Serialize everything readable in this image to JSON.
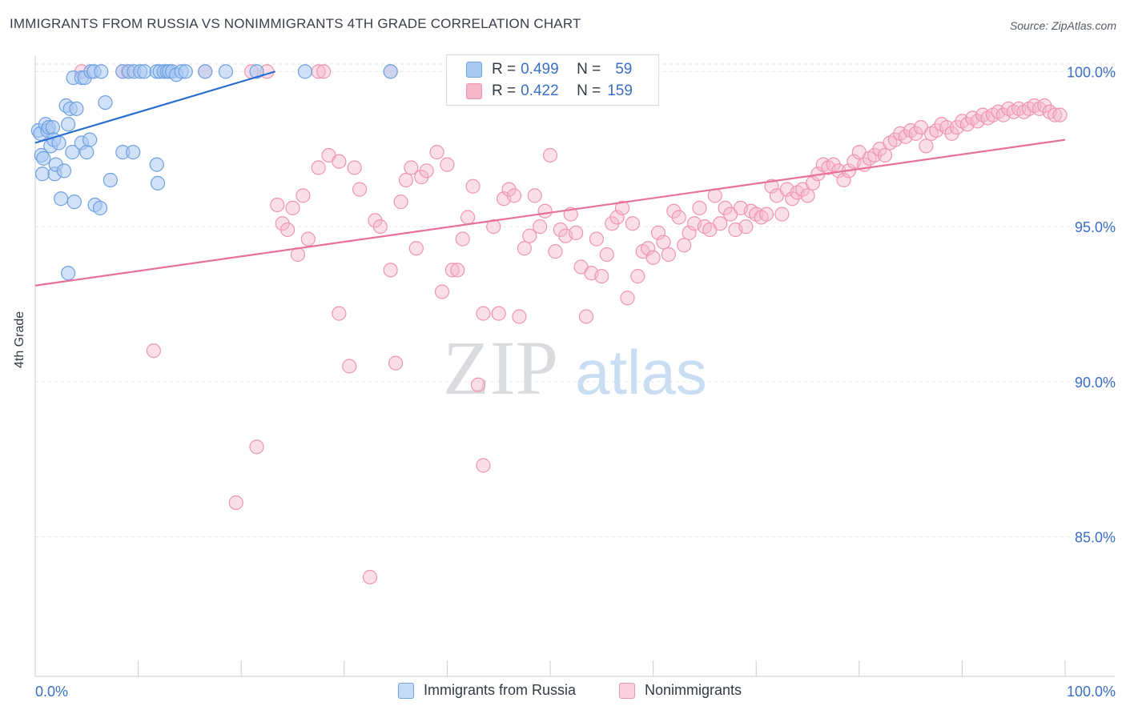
{
  "header": {
    "title": "IMMIGRANTS FROM RUSSIA VS NONIMMIGRANTS 4TH GRADE CORRELATION CHART",
    "source": "Source: ZipAtlas.com"
  },
  "watermark": {
    "zip": "ZIP",
    "atlas": "atlas"
  },
  "legend_top": {
    "rows": [
      {
        "r_label": "R =",
        "r_value": "0.499",
        "n_label": "N =",
        "n_value": "59"
      },
      {
        "r_label": "R =",
        "r_value": "0.422",
        "n_label": "N =",
        "n_value": "159"
      }
    ]
  },
  "colors": {
    "blue_fill": "#a9c8f2",
    "blue_stroke": "#6ea0e0",
    "blue_line": "#2a6dd1",
    "pink_fill": "#f5b8cb",
    "pink_stroke": "#ee94b0",
    "pink_line": "#e8719b",
    "axis_tick_color": "#3a6fc4",
    "grid": "#e3e6ea"
  },
  "chart_data": {
    "type": "scatter",
    "title": "IMMIGRANTS FROM RUSSIA VS NONIMMIGRANTS 4TH GRADE CORRELATION CHART",
    "xlabel": "",
    "ylabel": "4th Grade",
    "xlim": [
      0,
      100
    ],
    "ylim": [
      80.5,
      100.5
    ],
    "x_tick_labels": [
      "0.0%",
      "100.0%"
    ],
    "y_ticks": [
      85,
      90,
      95,
      100
    ],
    "y_tick_labels": [
      "85.0%",
      "90.0%",
      "95.0%",
      "100.0%"
    ],
    "grid": true,
    "legend_position": "bottom",
    "series": [
      {
        "name": "Immigrants from Russia",
        "r": 0.499,
        "n": 59,
        "trend": [
          [
            0,
            97.7
          ],
          [
            23.3,
            100.0
          ]
        ],
        "points": [
          [
            0.3,
            98.1
          ],
          [
            0.5,
            98.0
          ],
          [
            0.6,
            97.3
          ],
          [
            0.8,
            97.2
          ],
          [
            0.7,
            96.7
          ],
          [
            1.0,
            98.3
          ],
          [
            1.2,
            98.1
          ],
          [
            1.3,
            98.2
          ],
          [
            1.5,
            97.6
          ],
          [
            1.7,
            98.2
          ],
          [
            1.8,
            97.8
          ],
          [
            1.9,
            96.7
          ],
          [
            2.0,
            97.0
          ],
          [
            2.3,
            97.7
          ],
          [
            2.5,
            95.9
          ],
          [
            2.8,
            96.8
          ],
          [
            3.0,
            98.9
          ],
          [
            3.2,
            98.3
          ],
          [
            3.4,
            98.8
          ],
          [
            3.6,
            97.4
          ],
          [
            3.8,
            95.8
          ],
          [
            4.0,
            98.8
          ],
          [
            4.5,
            97.7
          ],
          [
            5.0,
            97.4
          ],
          [
            5.3,
            97.8
          ],
          [
            5.8,
            95.7
          ],
          [
            6.3,
            95.6
          ],
          [
            6.8,
            99.0
          ],
          [
            7.3,
            96.5
          ],
          [
            8.5,
            97.4
          ],
          [
            9.5,
            97.4
          ],
          [
            11.8,
            97.0
          ],
          [
            11.9,
            96.4
          ],
          [
            3.2,
            93.5
          ],
          [
            3.7,
            99.8
          ],
          [
            4.5,
            99.8
          ],
          [
            4.8,
            99.8
          ],
          [
            5.4,
            100.0
          ],
          [
            5.7,
            100.0
          ],
          [
            6.4,
            100.0
          ],
          [
            8.5,
            100.0
          ],
          [
            9.1,
            100.0
          ],
          [
            9.6,
            100.0
          ],
          [
            10.2,
            100.0
          ],
          [
            10.6,
            100.0
          ],
          [
            11.8,
            100.0
          ],
          [
            12.1,
            100.0
          ],
          [
            12.5,
            100.0
          ],
          [
            12.8,
            100.0
          ],
          [
            13.0,
            100.0
          ],
          [
            13.3,
            100.0
          ],
          [
            13.7,
            99.9
          ],
          [
            14.2,
            100.0
          ],
          [
            14.6,
            100.0
          ],
          [
            16.5,
            100.0
          ],
          [
            18.5,
            100.0
          ],
          [
            21.5,
            100.0
          ],
          [
            26.2,
            100.0
          ],
          [
            34.5,
            100.0
          ]
        ]
      },
      {
        "name": "Nonimmigrants",
        "r": 0.422,
        "n": 159,
        "trend": [
          [
            0,
            93.1
          ],
          [
            100,
            97.8
          ]
        ],
        "points": [
          [
            4.5,
            100.0
          ],
          [
            8.5,
            100.0
          ],
          [
            9.0,
            100.0
          ],
          [
            16.5,
            100.0
          ],
          [
            21.0,
            100.0
          ],
          [
            22.5,
            100.0
          ],
          [
            27.5,
            100.0
          ],
          [
            28.0,
            100.0
          ],
          [
            34.5,
            100.0
          ],
          [
            11.5,
            91.0
          ],
          [
            19.5,
            86.1
          ],
          [
            21.5,
            87.9
          ],
          [
            29.5,
            92.2
          ],
          [
            30.5,
            90.5
          ],
          [
            32.5,
            83.7
          ],
          [
            35.0,
            90.6
          ],
          [
            43.0,
            89.9
          ],
          [
            43.5,
            87.3
          ],
          [
            23.5,
            95.7
          ],
          [
            24.0,
            95.1
          ],
          [
            24.5,
            94.9
          ],
          [
            25.0,
            95.6
          ],
          [
            25.5,
            94.1
          ],
          [
            26.0,
            96.0
          ],
          [
            26.5,
            94.6
          ],
          [
            27.5,
            96.9
          ],
          [
            28.5,
            97.3
          ],
          [
            29.5,
            97.1
          ],
          [
            31.0,
            96.9
          ],
          [
            31.5,
            96.2
          ],
          [
            33.0,
            95.2
          ],
          [
            33.5,
            95.0
          ],
          [
            34.5,
            93.6
          ],
          [
            35.5,
            95.8
          ],
          [
            36.0,
            96.5
          ],
          [
            36.5,
            96.9
          ],
          [
            37.0,
            94.3
          ],
          [
            37.5,
            96.6
          ],
          [
            38.0,
            96.8
          ],
          [
            39.0,
            97.4
          ],
          [
            39.5,
            92.9
          ],
          [
            40.0,
            97.0
          ],
          [
            40.5,
            93.6
          ],
          [
            41.0,
            93.6
          ],
          [
            41.5,
            94.6
          ],
          [
            42.0,
            95.3
          ],
          [
            42.5,
            96.3
          ],
          [
            43.5,
            92.2
          ],
          [
            44.5,
            95.0
          ],
          [
            45.0,
            92.2
          ],
          [
            45.5,
            95.9
          ],
          [
            46.0,
            96.2
          ],
          [
            46.5,
            96.0
          ],
          [
            47.0,
            92.1
          ],
          [
            47.5,
            94.3
          ],
          [
            48.0,
            94.7
          ],
          [
            48.5,
            96.0
          ],
          [
            49.0,
            95.0
          ],
          [
            49.5,
            95.5
          ],
          [
            50.0,
            97.3
          ],
          [
            50.5,
            94.2
          ],
          [
            51.0,
            94.9
          ],
          [
            51.5,
            94.7
          ],
          [
            52.0,
            95.4
          ],
          [
            52.5,
            94.8
          ],
          [
            53.0,
            93.7
          ],
          [
            53.5,
            92.1
          ],
          [
            54.0,
            93.5
          ],
          [
            54.5,
            94.6
          ],
          [
            55.0,
            93.4
          ],
          [
            55.5,
            94.1
          ],
          [
            56.0,
            95.1
          ],
          [
            56.5,
            95.3
          ],
          [
            57.0,
            95.6
          ],
          [
            57.5,
            92.7
          ],
          [
            58.0,
            95.1
          ],
          [
            58.5,
            93.4
          ],
          [
            59.0,
            94.2
          ],
          [
            59.5,
            94.3
          ],
          [
            60.0,
            94.0
          ],
          [
            60.5,
            94.8
          ],
          [
            61.0,
            94.5
          ],
          [
            61.5,
            94.1
          ],
          [
            62.0,
            95.5
          ],
          [
            62.5,
            95.3
          ],
          [
            63.0,
            94.4
          ],
          [
            63.5,
            94.8
          ],
          [
            64.0,
            95.1
          ],
          [
            64.5,
            95.6
          ],
          [
            65.0,
            95.0
          ],
          [
            65.5,
            94.9
          ],
          [
            66.0,
            96.0
          ],
          [
            66.5,
            95.1
          ],
          [
            67.0,
            95.6
          ],
          [
            67.5,
            95.4
          ],
          [
            68.0,
            94.9
          ],
          [
            68.5,
            95.6
          ],
          [
            69.0,
            95.0
          ],
          [
            69.5,
            95.5
          ],
          [
            70.0,
            95.4
          ],
          [
            70.5,
            95.3
          ],
          [
            71.0,
            95.4
          ],
          [
            71.5,
            96.3
          ],
          [
            72.0,
            96.0
          ],
          [
            72.5,
            95.4
          ],
          [
            73.0,
            96.2
          ],
          [
            73.5,
            95.9
          ],
          [
            74.0,
            96.1
          ],
          [
            74.5,
            96.2
          ],
          [
            75.0,
            96.0
          ],
          [
            75.5,
            96.4
          ],
          [
            76.0,
            96.7
          ],
          [
            76.5,
            97.0
          ],
          [
            77.0,
            96.9
          ],
          [
            77.5,
            97.0
          ],
          [
            78.0,
            96.8
          ],
          [
            78.5,
            96.5
          ],
          [
            79.0,
            96.8
          ],
          [
            79.5,
            97.1
          ],
          [
            80.0,
            97.4
          ],
          [
            80.5,
            97.0
          ],
          [
            81.0,
            97.2
          ],
          [
            81.5,
            97.3
          ],
          [
            82.0,
            97.5
          ],
          [
            82.5,
            97.3
          ],
          [
            83.0,
            97.7
          ],
          [
            83.5,
            97.8
          ],
          [
            84.0,
            98.0
          ],
          [
            84.5,
            97.9
          ],
          [
            85.0,
            98.1
          ],
          [
            85.5,
            98.0
          ],
          [
            86.0,
            98.2
          ],
          [
            86.5,
            97.6
          ],
          [
            87.0,
            98.0
          ],
          [
            87.5,
            98.1
          ],
          [
            88.0,
            98.3
          ],
          [
            88.5,
            98.2
          ],
          [
            89.0,
            98.0
          ],
          [
            89.5,
            98.2
          ],
          [
            90.0,
            98.4
          ],
          [
            90.5,
            98.3
          ],
          [
            91.0,
            98.5
          ],
          [
            91.5,
            98.4
          ],
          [
            92.0,
            98.6
          ],
          [
            92.5,
            98.5
          ],
          [
            93.0,
            98.6
          ],
          [
            93.5,
            98.7
          ],
          [
            94.0,
            98.6
          ],
          [
            94.5,
            98.8
          ],
          [
            95.0,
            98.7
          ],
          [
            95.5,
            98.8
          ],
          [
            96.0,
            98.7
          ],
          [
            96.5,
            98.8
          ],
          [
            97.0,
            98.9
          ],
          [
            97.5,
            98.8
          ],
          [
            98.0,
            98.9
          ],
          [
            98.5,
            98.7
          ],
          [
            99.0,
            98.6
          ],
          [
            99.5,
            98.6
          ]
        ]
      }
    ]
  }
}
